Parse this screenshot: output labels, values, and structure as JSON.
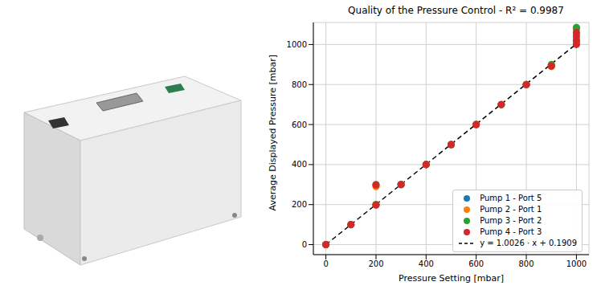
{
  "chart_data": {
    "type": "scatter",
    "title": "Quality of the Pressure Control - R² = 0.9987",
    "x_label": "Pressure Setting [mbar]",
    "y_label": "Average Displayed Pressure [mbar]",
    "xlim": [
      -50,
      1050
    ],
    "ylim": [
      -50,
      1110
    ],
    "xticks": [
      0,
      200,
      400,
      600,
      800,
      1000
    ],
    "yticks": [
      0,
      200,
      400,
      600,
      800,
      1000
    ],
    "grid": true,
    "legend": "lower right",
    "series": [
      {
        "name": "Pump 1 - Port 5",
        "type": "scatter",
        "color": "#1f77b4",
        "marker": "circle",
        "x": [
          0,
          100,
          200,
          300,
          400,
          500,
          600,
          700,
          800,
          900,
          1000,
          1000
        ],
        "values": [
          0,
          100,
          200,
          300,
          400,
          500,
          600,
          700,
          800,
          895,
          1010,
          1080
        ]
      },
      {
        "name": "Pump 2 - Port 1",
        "type": "scatter",
        "color": "#ff7f0e",
        "marker": "circle",
        "x": [
          0,
          100,
          200,
          200,
          300,
          400,
          500,
          600,
          700,
          800,
          900,
          1000,
          1000
        ],
        "values": [
          0,
          100,
          200,
          290,
          300,
          400,
          500,
          600,
          700,
          800,
          890,
          1005,
          1050
        ]
      },
      {
        "name": "Pump 3 - Port 2",
        "type": "scatter",
        "color": "#2ca02c",
        "marker": "circle",
        "x": [
          0,
          100,
          200,
          200,
          300,
          400,
          500,
          600,
          700,
          800,
          900,
          1000,
          1000
        ],
        "values": [
          0,
          100,
          200,
          300,
          300,
          400,
          500,
          600,
          700,
          800,
          900,
          1020,
          1085
        ]
      },
      {
        "name": "Pump 4 - Port 3",
        "type": "scatter",
        "color": "#d62728",
        "marker": "circle",
        "x": [
          0,
          100,
          200,
          200,
          300,
          400,
          500,
          600,
          700,
          800,
          900,
          1000,
          1000,
          1000,
          1000
        ],
        "values": [
          0,
          100,
          198,
          298,
          300,
          400,
          500,
          600,
          700,
          800,
          892,
          1000,
          1020,
          1040,
          1060
        ]
      },
      {
        "name": "y = 1.0026 · x + 0.1909",
        "type": "line",
        "color": "#000000",
        "line_style": "dashed",
        "x": [
          0,
          1000
        ],
        "values": [
          0.1909,
          1002.7909
        ]
      }
    ]
  }
}
